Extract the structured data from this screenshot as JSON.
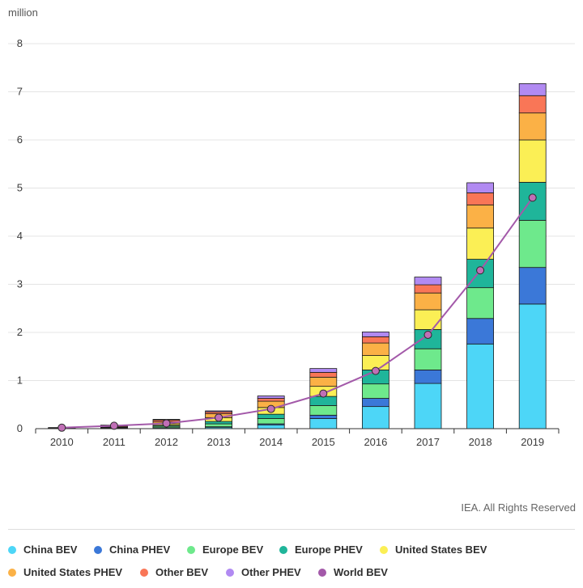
{
  "unit_label": "million",
  "credit": "IEA. All Rights Reserved",
  "chart_data": {
    "type": "bar",
    "stacked": true,
    "title": "",
    "xlabel": "",
    "ylabel": "million",
    "ylim": [
      0,
      8
    ],
    "yticks": [
      0,
      1,
      2,
      3,
      4,
      5,
      6,
      7,
      8
    ],
    "grid": true,
    "legend_position": "bottom",
    "categories": [
      "2010",
      "2011",
      "2012",
      "2013",
      "2014",
      "2015",
      "2016",
      "2017",
      "2018",
      "2019"
    ],
    "series": [
      {
        "name": "China BEV",
        "color": "#4dd6f7",
        "values": [
          0.0,
          0.01,
          0.02,
          0.03,
          0.08,
          0.21,
          0.46,
          0.94,
          1.76,
          2.59
        ]
      },
      {
        "name": "China PHEV",
        "color": "#3b78d8",
        "values": [
          0.0,
          0.0,
          0.0,
          0.01,
          0.02,
          0.07,
          0.17,
          0.28,
          0.53,
          0.76
        ]
      },
      {
        "name": "Europe BEV",
        "color": "#6ee98c",
        "values": [
          0.0,
          0.01,
          0.03,
          0.06,
          0.11,
          0.2,
          0.3,
          0.44,
          0.64,
          0.98
        ]
      },
      {
        "name": "Europe PHEV",
        "color": "#1fb59a",
        "values": [
          0.0,
          0.0,
          0.02,
          0.05,
          0.09,
          0.19,
          0.29,
          0.4,
          0.59,
          0.79
        ]
      },
      {
        "name": "United States BEV",
        "color": "#fbef55",
        "values": [
          0.0,
          0.01,
          0.03,
          0.08,
          0.14,
          0.21,
          0.3,
          0.41,
          0.65,
          0.88
        ]
      },
      {
        "name": "United States PHEV",
        "color": "#fbb146",
        "values": [
          0.0,
          0.01,
          0.04,
          0.08,
          0.13,
          0.19,
          0.26,
          0.35,
          0.48,
          0.56
        ]
      },
      {
        "name": "Other BEV",
        "color": "#f97657",
        "values": [
          0.01,
          0.02,
          0.04,
          0.04,
          0.06,
          0.1,
          0.13,
          0.17,
          0.25,
          0.36
        ]
      },
      {
        "name": "Other PHEV",
        "color": "#b18af2",
        "values": [
          0.0,
          0.0,
          0.01,
          0.02,
          0.05,
          0.08,
          0.1,
          0.16,
          0.21,
          0.25
        ]
      }
    ],
    "line_series": {
      "name": "World BEV",
      "color": "#a359a9",
      "values": [
        0.02,
        0.06,
        0.11,
        0.23,
        0.41,
        0.73,
        1.2,
        1.95,
        3.29,
        4.8
      ]
    }
  }
}
